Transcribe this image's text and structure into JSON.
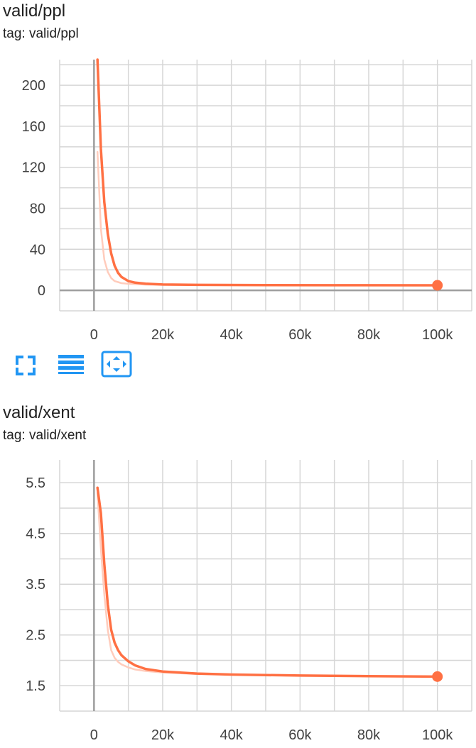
{
  "cards": [
    {
      "title": "valid/ppl",
      "tag": "tag: valid/ppl"
    },
    {
      "title": "valid/xent",
      "tag": "tag: valid/xent"
    }
  ],
  "toolbar": {
    "icons": [
      "fullscreen-icon",
      "toggle-log-scale-icon",
      "fit-domain-icon"
    ]
  },
  "colors": {
    "series": "#ff7043",
    "series_raw": "#ffccbc",
    "grid": "#d6d6d6",
    "axis": "#9e9e9e"
  },
  "chart_data": [
    {
      "type": "line",
      "title": "valid/ppl",
      "xlabel": "",
      "ylabel": "",
      "xlim": [
        -10000,
        110000
      ],
      "ylim": [
        -20,
        225
      ],
      "x_ticks": [
        0,
        20000,
        40000,
        60000,
        80000,
        100000
      ],
      "x_tick_labels": [
        "0",
        "20k",
        "40k",
        "60k",
        "80k",
        "100k"
      ],
      "y_ticks": [
        0,
        40,
        80,
        120,
        160,
        200
      ],
      "y_tick_labels": [
        "0",
        "40",
        "80",
        "120",
        "160",
        "200"
      ],
      "grid": true,
      "series": [
        {
          "role": "smoothed",
          "x": [
            1000,
            2000,
            3000,
            4000,
            5000,
            6000,
            7000,
            8000,
            10000,
            12000,
            15000,
            20000,
            30000,
            50000,
            70000,
            100000
          ],
          "y": [
            225,
            138,
            86,
            55,
            36,
            24,
            17,
            13,
            9,
            7.5,
            6.5,
            5.7,
            5.3,
            5.1,
            5.0,
            4.9
          ]
        },
        {
          "role": "raw",
          "x": [
            1000,
            2000,
            3000,
            4000,
            5000,
            6000,
            7000,
            8000,
            10000,
            12000,
            15000,
            20000,
            30000,
            50000,
            70000,
            100000
          ],
          "y": [
            135,
            60,
            30,
            18,
            12,
            9,
            8,
            7,
            6.4,
            6.0,
            5.6,
            5.3,
            5.1,
            5.0,
            4.9,
            4.9
          ]
        }
      ],
      "last_point": {
        "x": 100000,
        "y": 4.9
      }
    },
    {
      "type": "line",
      "title": "valid/xent",
      "xlabel": "",
      "ylabel": "",
      "xlim": [
        -10000,
        110000
      ],
      "ylim": [
        1.0,
        5.95
      ],
      "x_ticks": [
        0,
        20000,
        40000,
        60000,
        80000,
        100000
      ],
      "x_tick_labels": [
        "0",
        "20k",
        "40k",
        "60k",
        "80k",
        "100k"
      ],
      "y_ticks": [
        1.5,
        2.5,
        3.5,
        4.5,
        5.5
      ],
      "y_tick_labels": [
        "1.5",
        "2.5",
        "3.5",
        "4.5",
        "5.5"
      ],
      "grid": true,
      "series": [
        {
          "role": "smoothed",
          "x": [
            1000,
            2000,
            3000,
            4000,
            5000,
            6000,
            7000,
            8000,
            10000,
            12000,
            15000,
            20000,
            30000,
            40000,
            60000,
            80000,
            100000
          ],
          "y": [
            5.4,
            4.9,
            3.9,
            3.1,
            2.6,
            2.35,
            2.2,
            2.1,
            1.98,
            1.9,
            1.83,
            1.78,
            1.74,
            1.72,
            1.7,
            1.69,
            1.68
          ]
        },
        {
          "role": "raw",
          "x": [
            1000,
            2000,
            3000,
            4000,
            5000,
            6000,
            7000,
            8000,
            10000,
            12000,
            15000,
            20000,
            30000,
            40000,
            60000,
            80000,
            100000
          ],
          "y": [
            5.3,
            4.2,
            3.3,
            2.6,
            2.2,
            2.05,
            1.97,
            1.92,
            1.86,
            1.82,
            1.79,
            1.76,
            1.73,
            1.72,
            1.7,
            1.69,
            1.68
          ]
        }
      ],
      "last_point": {
        "x": 100000,
        "y": 1.68
      }
    }
  ]
}
